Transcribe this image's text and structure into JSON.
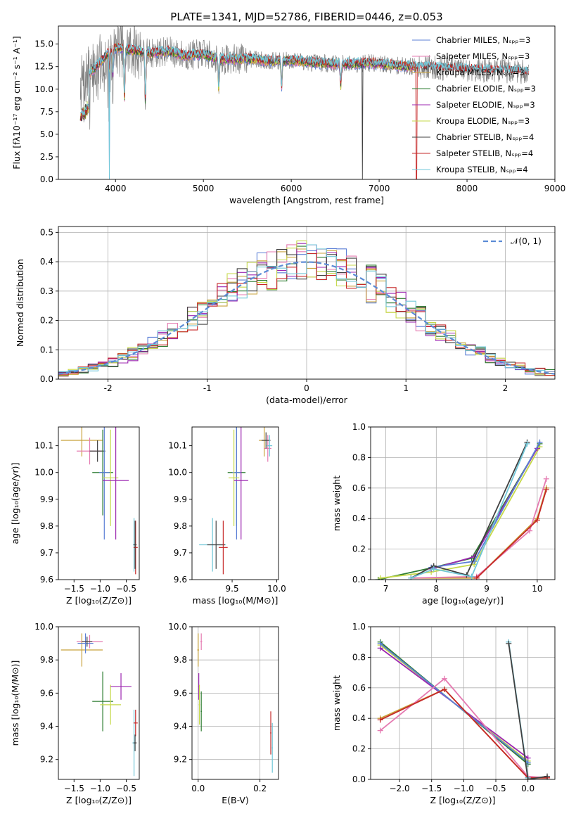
{
  "figure_title": "PLATE=1341, MJD=52786, FIBERID=0446, z=0.053",
  "palette": [
    "#5b7fd6",
    "#e57ab1",
    "#c8a23a",
    "#2e7d32",
    "#9c27b0",
    "#c6d94a",
    "#404040",
    "#c62828",
    "#71c7d8"
  ],
  "chart_data": [
    {
      "type": "line",
      "id": "spectrum",
      "xlabel": "wavelength [Angstrom, rest frame]",
      "ylabel": "Flux [fλ10⁻¹⁷ erg cm⁻² s⁻¹ A⁻¹]",
      "xlim": [
        3350,
        9000
      ],
      "ylim": [
        0,
        17
      ],
      "xticks": [
        4000,
        5000,
        6000,
        7000,
        8000,
        9000
      ],
      "yticks": [
        0.0,
        2.5,
        5.0,
        7.5,
        10.0,
        12.5,
        15.0
      ],
      "grid": false,
      "legend_position": "right",
      "legend": [
        "Chabrier MILES, Nₛₚₚ=3",
        "Salpeter MILES, Nₛₚₚ=3",
        "Kroupa MILES, Nₛₚₚ=3",
        "Chabrier ELODIE, Nₛₚₚ=3",
        "Salpeter ELODIE, Nₛₚₚ=3",
        "Kroupa ELODIE, Nₛₚₚ=3",
        "Chabrier STELIB, Nₛₚₚ=4",
        "Salpeter STELIB, Nₛₚₚ=4",
        "Kroupa STELIB, Nₛₚₚ=4"
      ],
      "continuum": [
        [
          3600,
          10.5
        ],
        [
          3750,
          12.2
        ],
        [
          3900,
          13.8
        ],
        [
          4000,
          14.6
        ],
        [
          4200,
          14.3
        ],
        [
          4400,
          14.0
        ],
        [
          4600,
          14.2
        ],
        [
          4800,
          13.7
        ],
        [
          5000,
          13.9
        ],
        [
          5200,
          13.3
        ],
        [
          5500,
          13.4
        ],
        [
          5800,
          13.1
        ],
        [
          6000,
          13.2
        ],
        [
          6300,
          12.9
        ],
        [
          6600,
          12.8
        ],
        [
          6900,
          12.9
        ],
        [
          7200,
          12.6
        ],
        [
          7420,
          12.5
        ],
        [
          7800,
          12.3
        ],
        [
          8200,
          12.1
        ],
        [
          8600,
          12.0
        ],
        [
          8700,
          11.9
        ]
      ],
      "absorption_lines": [
        [
          3934,
          2.0
        ],
        [
          3969,
          3.0
        ],
        [
          4102,
          5.5
        ],
        [
          4340,
          5.5
        ],
        [
          5175,
          3.5
        ],
        [
          5890,
          3.0
        ],
        [
          6563,
          2.5
        ]
      ],
      "dropouts": [
        3930,
        5715,
        6810,
        7425
      ]
    },
    {
      "type": "histogram",
      "id": "residuals",
      "xlabel": "(data-model)/error",
      "ylabel": "Normed distribution",
      "xlim": [
        -2.5,
        2.5
      ],
      "ylim": [
        0,
        0.52
      ],
      "xticks": [
        -2,
        -1,
        0,
        1,
        2
      ],
      "yticks": [
        0.0,
        0.1,
        0.2,
        0.3,
        0.4,
        0.5
      ],
      "grid": true,
      "bin_width": 0.1,
      "reference_label": "𝒩(0, 1)",
      "legend_position": "upper right"
    },
    {
      "type": "errorbar",
      "id": "z-age",
      "xlabel": "Z [log₁₀(Z/Z⊙)]",
      "ylabel": "age  [log₁₀(age/yr)]",
      "xlim": [
        -1.8,
        -0.25
      ],
      "ylim": [
        9.6,
        10.17
      ],
      "xticks": [
        -1.5,
        -1.0,
        -0.5
      ],
      "xtick_labels": [
        "−1.5",
        "−1.0",
        "−0.5"
      ],
      "yticks": [
        9.6,
        9.7,
        9.8,
        9.9,
        10.0,
        10.1
      ],
      "ytick_labels": [
        "9.6",
        "9.7",
        "9.8",
        "9.9",
        "10.0",
        "10.1"
      ],
      "grid": false,
      "points": [
        {
          "c": 2,
          "x": -1.35,
          "y": 10.12,
          "xe": 0.4,
          "ye": 0.06
        },
        {
          "c": 1,
          "x": -1.2,
          "y": 10.08,
          "xe": 0.25,
          "ye": 0.05
        },
        {
          "c": 6,
          "x": -1.05,
          "y": 10.08,
          "xe": 0.15,
          "ye": 0.04
        },
        {
          "c": 3,
          "x": -0.95,
          "y": 10.0,
          "xe": 0.2,
          "ye": 0.16
        },
        {
          "c": 0,
          "x": -0.92,
          "y": 10.0,
          "xe": 0.1,
          "ye": 0.25
        },
        {
          "c": 5,
          "x": -0.8,
          "y": 9.98,
          "xe": 0.15,
          "ye": 0.18
        },
        {
          "c": 4,
          "x": -0.7,
          "y": 9.97,
          "xe": 0.25,
          "ye": 0.22
        },
        {
          "c": 8,
          "x": -0.35,
          "y": 9.73,
          "xe": 0.02,
          "ye": 0.1
        },
        {
          "c": 7,
          "x": -0.32,
          "y": 9.72,
          "xe": 0.04,
          "ye": 0.1
        },
        {
          "c": 6,
          "x": -0.33,
          "y": 9.73,
          "xe": 0.03,
          "ye": 0.09
        }
      ]
    },
    {
      "type": "errorbar",
      "id": "mass-age",
      "xlabel": "mass [log₁₀(M/M⊙)]",
      "ylabel": "",
      "xlim": [
        9.05,
        10.02
      ],
      "ylim": [
        9.6,
        10.17
      ],
      "xticks": [
        9.5,
        10.0
      ],
      "xtick_labels": [
        "9.5",
        "10.0"
      ],
      "yticks": [
        9.6,
        9.7,
        9.8,
        9.9,
        10.0,
        10.1
      ],
      "ytick_labels": [
        "9.6",
        "9.7",
        "9.8",
        "9.9",
        "10.0",
        "10.1"
      ],
      "grid": false,
      "points": [
        {
          "c": 2,
          "x": 9.86,
          "y": 10.12,
          "xe": 0.06,
          "ye": 0.06
        },
        {
          "c": 1,
          "x": 9.9,
          "y": 10.09,
          "xe": 0.04,
          "ye": 0.05
        },
        {
          "c": 6,
          "x": 9.88,
          "y": 10.12,
          "xe": 0.05,
          "ye": 0.03
        },
        {
          "c": 8,
          "x": 9.92,
          "y": 10.1,
          "xe": 0.03,
          "ye": 0.04
        },
        {
          "c": 3,
          "x": 9.55,
          "y": 10.0,
          "xe": 0.1,
          "ye": 0.2
        },
        {
          "c": 0,
          "x": 9.55,
          "y": 10.0,
          "xe": 0.05,
          "ye": 0.25
        },
        {
          "c": 5,
          "x": 9.52,
          "y": 9.98,
          "xe": 0.06,
          "ye": 0.18
        },
        {
          "c": 4,
          "x": 9.6,
          "y": 9.97,
          "xe": 0.08,
          "ye": 0.22
        },
        {
          "c": 8,
          "x": 9.28,
          "y": 9.73,
          "xe": 0.15,
          "ye": 0.1
        },
        {
          "c": 6,
          "x": 9.32,
          "y": 9.73,
          "xe": 0.1,
          "ye": 0.09
        },
        {
          "c": 7,
          "x": 9.4,
          "y": 9.72,
          "xe": 0.05,
          "ye": 0.1
        }
      ]
    },
    {
      "type": "line",
      "id": "age-weight",
      "xlabel": "age  [log₁₀(age/yr)]",
      "ylabel": "mass weight",
      "xlim": [
        6.7,
        10.35
      ],
      "ylim": [
        0,
        1
      ],
      "xticks": [
        7,
        8,
        9,
        10
      ],
      "xtick_labels": [
        "7",
        "8",
        "9",
        "10"
      ],
      "yticks": [
        0.0,
        0.2,
        0.4,
        0.6,
        0.8,
        1.0
      ],
      "ytick_labels": [
        "0.0",
        "0.2",
        "0.4",
        "0.6",
        "0.8",
        "1.0"
      ],
      "grid": true,
      "series": [
        {
          "c": 2,
          "points": [
            [
              7.5,
              0.01
            ],
            [
              8.8,
              0.01
            ],
            [
              10.0,
              0.4
            ],
            [
              10.18,
              0.6
            ]
          ]
        },
        {
          "c": 1,
          "points": [
            [
              7.5,
              0.01
            ],
            [
              8.8,
              0.02
            ],
            [
              9.85,
              0.32
            ],
            [
              10.18,
              0.66
            ]
          ]
        },
        {
          "c": 3,
          "points": [
            [
              6.85,
              0.0
            ],
            [
              7.95,
              0.08
            ],
            [
              8.7,
              0.14
            ],
            [
              10.05,
              0.89
            ]
          ]
        },
        {
          "c": 5,
          "points": [
            [
              6.9,
              0.01
            ],
            [
              7.9,
              0.05
            ],
            [
              8.75,
              0.1
            ],
            [
              10.05,
              0.87
            ]
          ]
        },
        {
          "c": 4,
          "points": [
            [
              7.9,
              0.07
            ],
            [
              8.75,
              0.15
            ],
            [
              10.0,
              0.86
            ]
          ]
        },
        {
          "c": 0,
          "points": [
            [
              7.9,
              0.08
            ],
            [
              8.75,
              0.12
            ],
            [
              10.05,
              0.9
            ]
          ]
        },
        {
          "c": 6,
          "points": [
            [
              7.5,
              0.01
            ],
            [
              7.95,
              0.09
            ],
            [
              8.6,
              0.03
            ],
            [
              9.8,
              0.9
            ]
          ]
        },
        {
          "c": 8,
          "points": [
            [
              7.5,
              0.01
            ],
            [
              7.95,
              0.07
            ],
            [
              8.7,
              0.02
            ],
            [
              9.8,
              0.89
            ]
          ]
        },
        {
          "c": 7,
          "points": [
            [
              8.8,
              0.01
            ],
            [
              10.0,
              0.39
            ],
            [
              10.18,
              0.59
            ]
          ]
        }
      ]
    },
    {
      "type": "errorbar",
      "id": "z-mass",
      "xlabel": "Z [log₁₀(Z/Z⊙)]",
      "ylabel": "mass [log₁₀(M/M⊙)]",
      "xlim": [
        -1.8,
        -0.25
      ],
      "ylim": [
        9.08,
        10.0
      ],
      "xticks": [
        -1.5,
        -1.0,
        -0.5
      ],
      "xtick_labels": [
        "−1.5",
        "−1.0",
        "−0.5"
      ],
      "yticks": [
        9.2,
        9.4,
        9.6,
        9.8,
        10.0
      ],
      "ytick_labels": [
        "9.2",
        "9.4",
        "9.6",
        "9.8",
        "10.0"
      ],
      "grid": false,
      "points": [
        {
          "c": 2,
          "x": -1.35,
          "y": 9.86,
          "xe": 0.4,
          "ye": 0.1
        },
        {
          "c": 1,
          "x": -1.2,
          "y": 9.91,
          "xe": 0.25,
          "ye": 0.04
        },
        {
          "c": 0,
          "x": -1.28,
          "y": 9.9,
          "xe": 0.15,
          "ye": 0.06
        },
        {
          "c": 6,
          "x": -1.25,
          "y": 9.91,
          "xe": 0.1,
          "ye": 0.03
        },
        {
          "c": 3,
          "x": -0.95,
          "y": 9.55,
          "xe": 0.2,
          "ye": 0.18
        },
        {
          "c": 5,
          "x": -0.8,
          "y": 9.53,
          "xe": 0.2,
          "ye": 0.12
        },
        {
          "c": 4,
          "x": -0.6,
          "y": 9.64,
          "xe": 0.2,
          "ye": 0.08
        },
        {
          "c": 8,
          "x": -0.35,
          "y": 9.3,
          "xe": 0.03,
          "ye": 0.2
        },
        {
          "c": 7,
          "x": -0.32,
          "y": 9.42,
          "xe": 0.04,
          "ye": 0.08
        },
        {
          "c": 6,
          "x": -0.33,
          "y": 9.3,
          "xe": 0.03,
          "ye": 0.05
        }
      ]
    },
    {
      "type": "errorbar",
      "id": "ebv-mass",
      "xlabel": "E(B-V)",
      "ylabel": "",
      "xlim": [
        -0.02,
        0.26
      ],
      "ylim": [
        9.08,
        10.0
      ],
      "xticks": [
        0.0,
        0.2
      ],
      "xtick_labels": [
        "0.0",
        "0.2"
      ],
      "yticks": [
        9.2,
        9.4,
        9.6,
        9.8,
        10.0
      ],
      "ytick_labels": [
        "9.2",
        "9.4",
        "9.6",
        "9.8",
        "10.0"
      ],
      "grid": true,
      "points": [
        {
          "c": 2,
          "x": 0.0,
          "y": 9.86,
          "xe": 0.003,
          "ye": 0.1
        },
        {
          "c": 1,
          "x": 0.01,
          "y": 9.91,
          "xe": 0.003,
          "ye": 0.05
        },
        {
          "c": 4,
          "x": 0.002,
          "y": 9.64,
          "xe": 0.002,
          "ye": 0.08
        },
        {
          "c": 5,
          "x": 0.004,
          "y": 9.53,
          "xe": 0.002,
          "ye": 0.12
        },
        {
          "c": 3,
          "x": 0.01,
          "y": 9.49,
          "xe": 0.002,
          "ye": 0.12
        },
        {
          "c": 7,
          "x": 0.235,
          "y": 9.36,
          "xe": 0.002,
          "ye": 0.13
        },
        {
          "c": 8,
          "x": 0.24,
          "y": 9.27,
          "xe": 0.002,
          "ye": 0.15
        }
      ]
    },
    {
      "type": "line",
      "id": "z-weight",
      "xlabel": "Z [log₁₀(Z/Z⊙)]",
      "ylabel": "mass weight",
      "xlim": [
        -2.45,
        0.42
      ],
      "ylim": [
        0,
        1
      ],
      "xticks": [
        -2.0,
        -1.5,
        -1.0,
        -0.5,
        0.0
      ],
      "xtick_labels": [
        "−2.0",
        "−1.5",
        "−1.0",
        "−0.5",
        "0.0"
      ],
      "yticks": [
        0.0,
        0.2,
        0.4,
        0.6,
        0.8,
        1.0
      ],
      "ytick_labels": [
        "0.0",
        "0.2",
        "0.4",
        "0.6",
        "0.8",
        "1.0"
      ],
      "grid": true,
      "series": [
        {
          "c": 3,
          "points": [
            [
              -2.3,
              0.9
            ],
            [
              0.0,
              0.1
            ]
          ]
        },
        {
          "c": 5,
          "points": [
            [
              -2.3,
              0.88
            ],
            [
              0.0,
              0.12
            ]
          ]
        },
        {
          "c": 4,
          "points": [
            [
              -2.3,
              0.86
            ],
            [
              0.0,
              0.14
            ]
          ]
        },
        {
          "c": 0,
          "points": [
            [
              -2.3,
              0.89
            ],
            [
              0.0,
              0.11
            ]
          ]
        },
        {
          "c": 2,
          "points": [
            [
              -2.3,
              0.4
            ],
            [
              -1.3,
              0.59
            ],
            [
              0.0,
              0.01
            ],
            [
              0.3,
              0.01
            ]
          ]
        },
        {
          "c": 1,
          "points": [
            [
              -2.3,
              0.32
            ],
            [
              -1.3,
              0.66
            ],
            [
              0.0,
              0.02
            ],
            [
              0.3,
              0.01
            ]
          ]
        },
        {
          "c": 7,
          "points": [
            [
              -2.3,
              0.39
            ],
            [
              -1.3,
              0.59
            ],
            [
              0.0,
              0.01
            ],
            [
              0.3,
              0.01
            ]
          ]
        },
        {
          "c": 8,
          "points": [
            [
              -0.3,
              0.9
            ],
            [
              0.0,
              0.01
            ]
          ]
        },
        {
          "c": 6,
          "points": [
            [
              -0.3,
              0.89
            ],
            [
              0.0,
              0.0
            ],
            [
              0.3,
              0.02
            ]
          ]
        }
      ]
    }
  ]
}
